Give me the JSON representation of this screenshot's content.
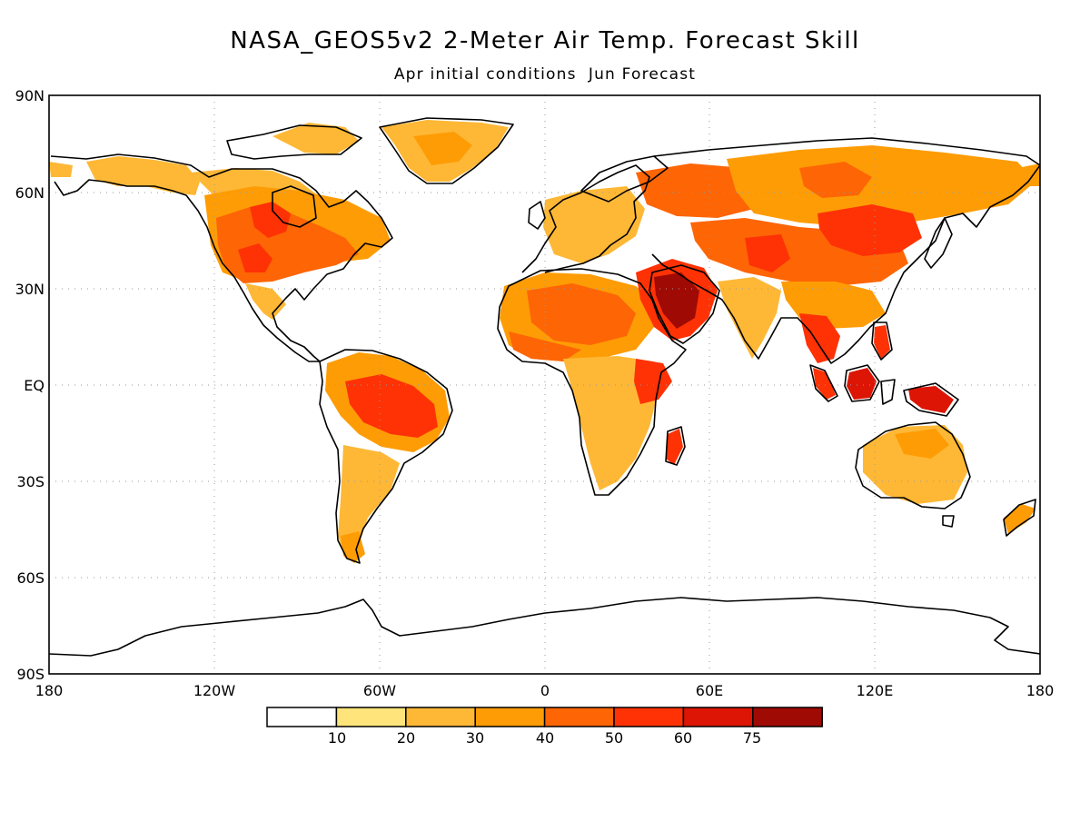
{
  "title": "NASA_GEOS5v2 2-Meter Air Temp. Forecast Skill",
  "subtitle": "Apr initial conditions  Jun Forecast",
  "lat_labels": [
    "90N",
    "60N",
    "30N",
    "EQ",
    "30S",
    "60S",
    "90S"
  ],
  "lon_labels": [
    "180",
    "120W",
    "60W",
    "0",
    "60E",
    "120E",
    "180"
  ],
  "colorbar": {
    "tick_labels": [
      "10",
      "20",
      "30",
      "40",
      "50",
      "60",
      "75"
    ],
    "colors": [
      "#ffffff",
      "#fee47a",
      "#feb836",
      "#fe9c05",
      "#fe6505",
      "#fe3205",
      "#dc1505",
      "#a00a05"
    ]
  },
  "map": {
    "coastline_color": "#000000",
    "grid": "dotted",
    "skill_regions": [
      {
        "region": "Western/Central North America",
        "level": 4
      },
      {
        "region": "Great Lakes / Hudson",
        "level": 5
      },
      {
        "region": "Alaska / Yukon",
        "level": 2
      },
      {
        "region": "Greenland",
        "level": 2
      },
      {
        "region": "Amazon / Brazil",
        "level": 5
      },
      {
        "region": "Patagonia",
        "level": 3
      },
      {
        "region": "Sahara / Sahel",
        "level": 4
      },
      {
        "region": "Arabian Peninsula",
        "level": 7
      },
      {
        "region": "East Africa",
        "level": 5
      },
      {
        "region": "Madagascar",
        "level": 5
      },
      {
        "region": "Central Siberia",
        "level": 4
      },
      {
        "region": "Mongolia / Northern China",
        "level": 5
      },
      {
        "region": "Central Asia",
        "level": 5
      },
      {
        "region": "Southeast Asia",
        "level": 5
      },
      {
        "region": "Borneo",
        "level": 6
      },
      {
        "region": "New Guinea",
        "level": 6
      },
      {
        "region": "Australia",
        "level": 2
      },
      {
        "region": "New Zealand",
        "level": 3
      },
      {
        "region": "India",
        "level": 2
      }
    ]
  }
}
